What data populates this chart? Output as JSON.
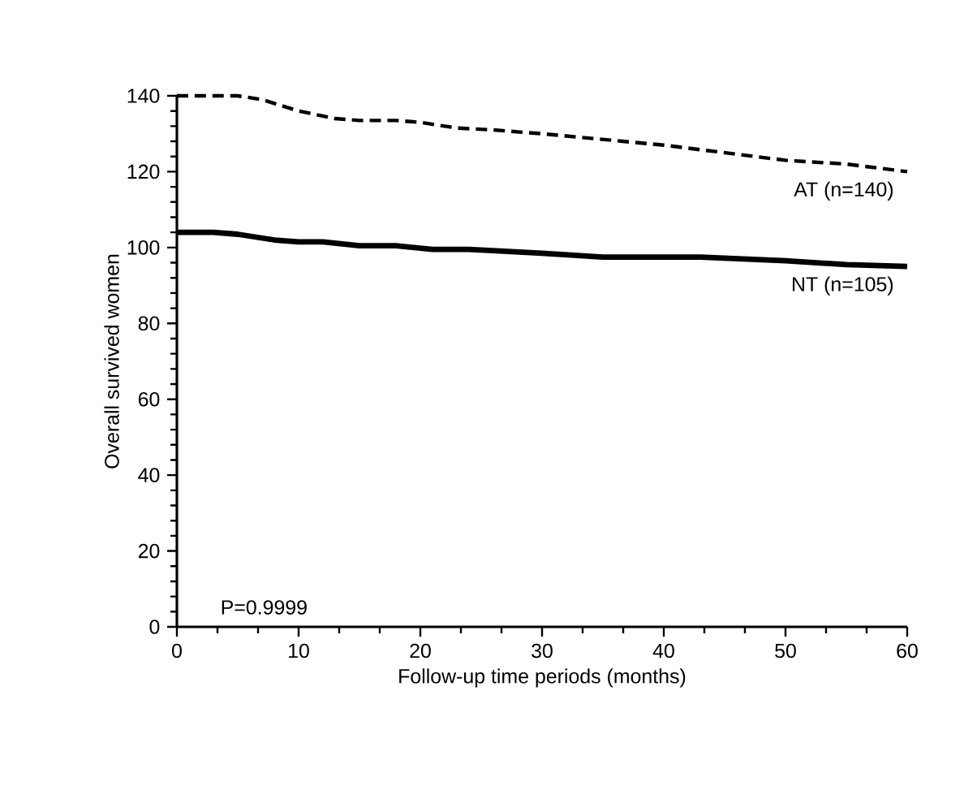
{
  "chart_data": {
    "type": "line",
    "xlabel": "Follow-up time periods (months)",
    "ylabel": "Overall survived women",
    "xlim": [
      0,
      60
    ],
    "ylim": [
      0,
      140
    ],
    "xticks": [
      0,
      10,
      20,
      30,
      40,
      50,
      60
    ],
    "yticks": [
      0,
      20,
      40,
      60,
      80,
      100,
      120,
      140
    ],
    "grid": false,
    "legend": false,
    "marker": "none",
    "annotations": [
      "P=0.9999"
    ],
    "series": [
      {
        "name": "AT (n=140)",
        "color": "#000000",
        "line_style": "dashed",
        "x": [
          0,
          5,
          7,
          10,
          13,
          15,
          18,
          20,
          23,
          26,
          30,
          35,
          40,
          45,
          50,
          55,
          60
        ],
        "values": [
          140,
          140,
          139,
          136,
          134,
          133.5,
          133.5,
          133,
          131.5,
          131,
          130,
          128.5,
          127,
          125,
          123,
          122,
          120
        ]
      },
      {
        "name": "NT (n=105)",
        "color": "#000000",
        "line_style": "solid",
        "x": [
          0,
          3,
          5,
          8,
          10,
          12,
          15,
          18,
          21,
          24,
          30,
          35,
          43,
          50,
          55,
          60
        ],
        "values": [
          104,
          104,
          103.5,
          102,
          101.5,
          101.5,
          100.5,
          100.5,
          99.5,
          99.5,
          98.5,
          97.5,
          97.5,
          96.5,
          95.5,
          95
        ]
      }
    ]
  }
}
